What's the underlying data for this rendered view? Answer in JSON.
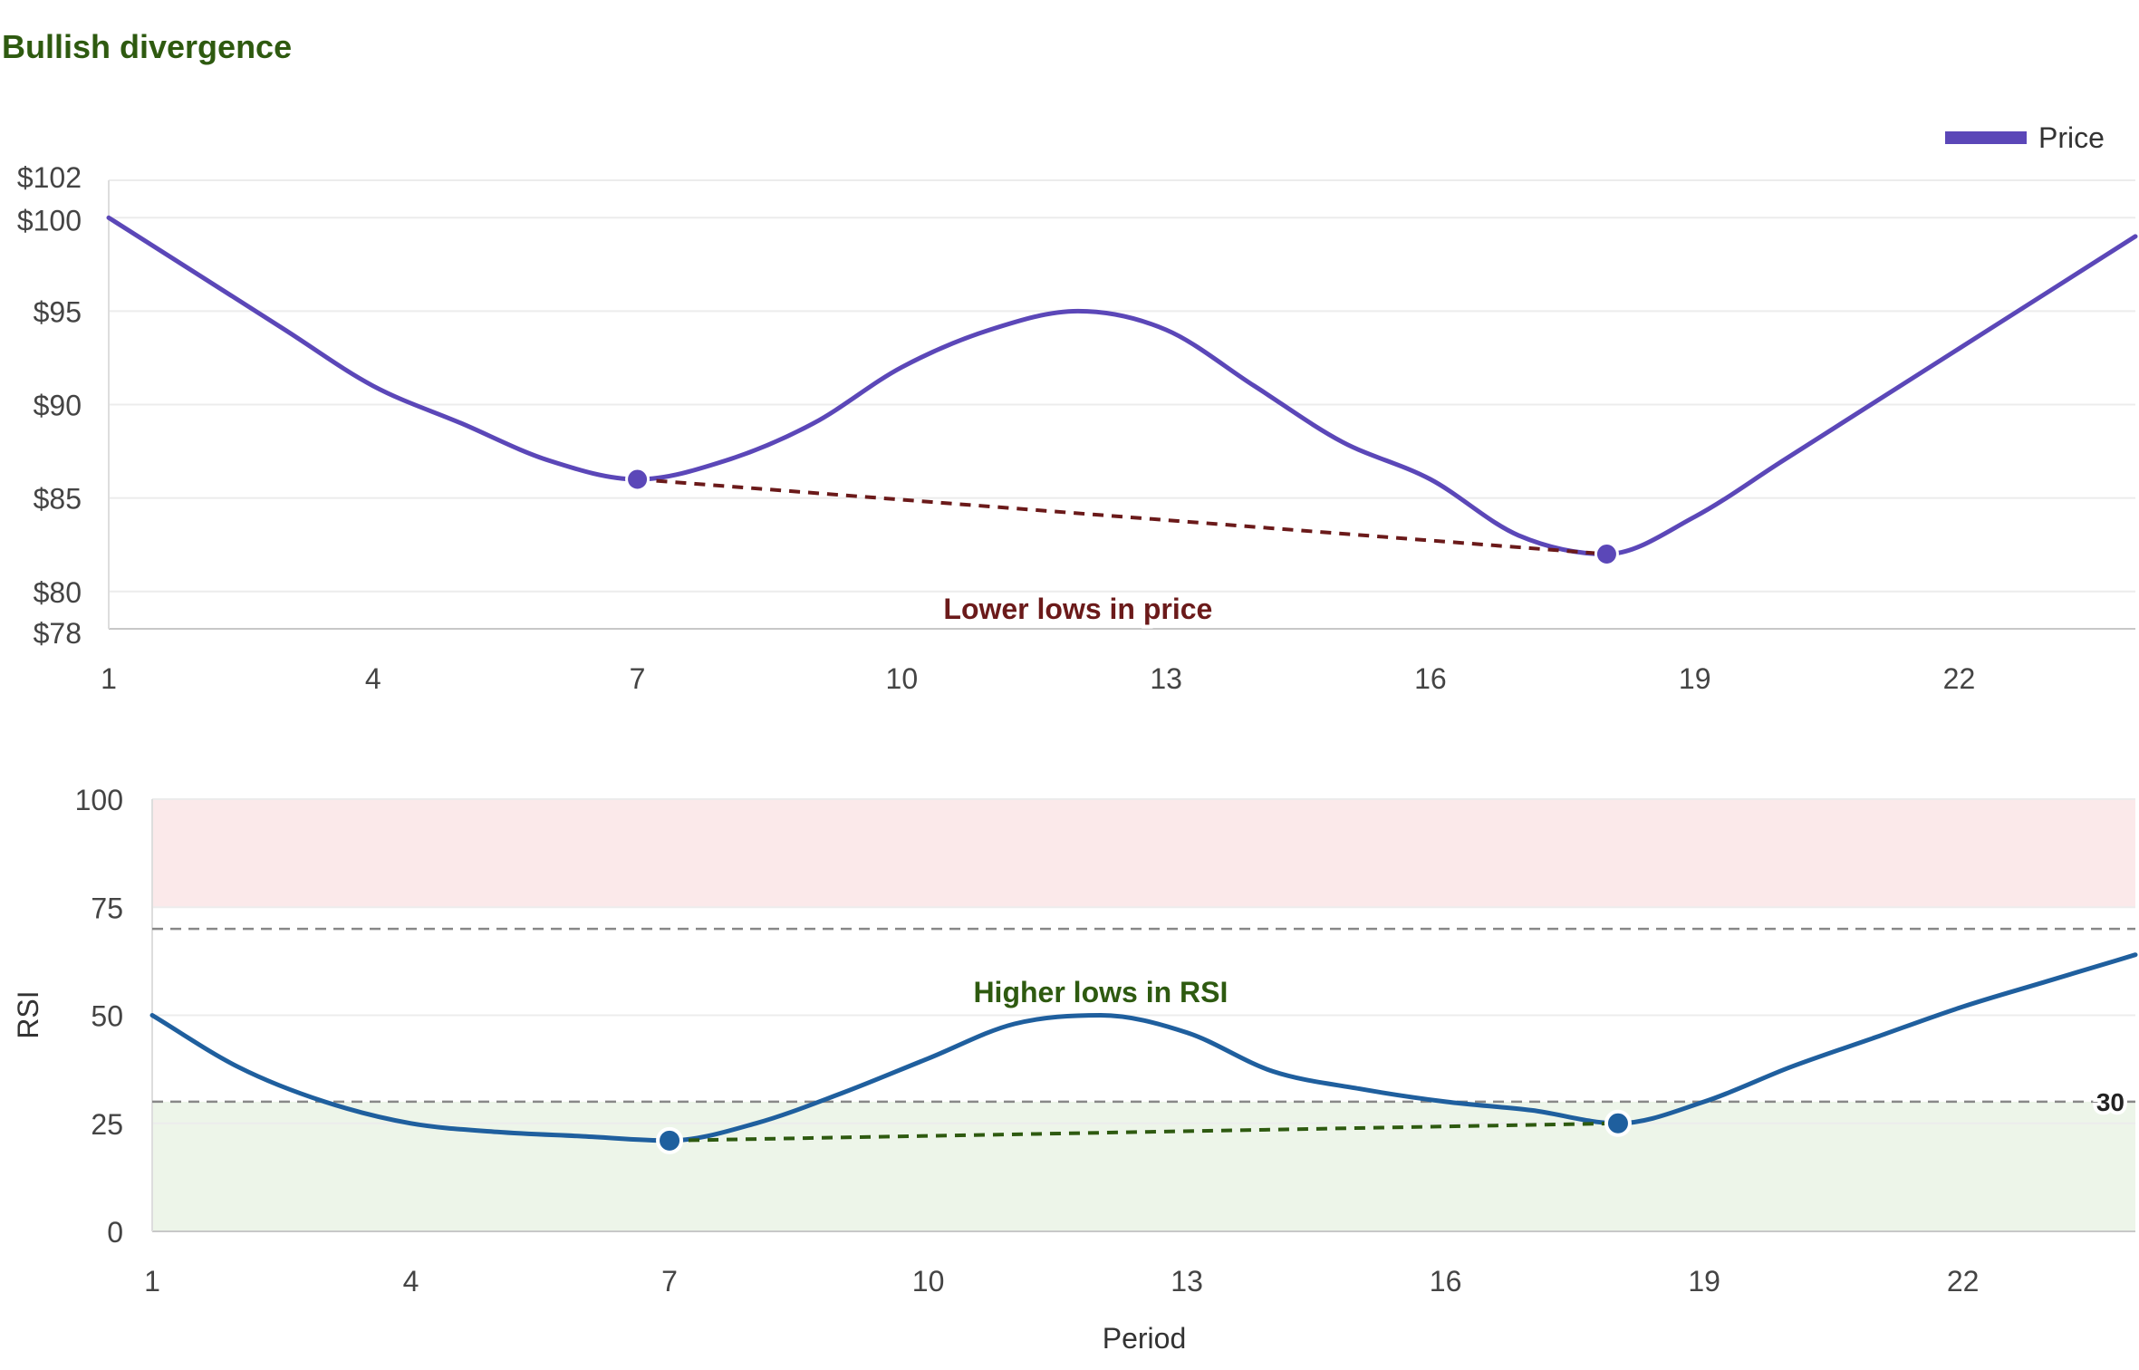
{
  "chart_data": [
    {
      "type": "line",
      "title": "Bullish divergence",
      "title_color": "#2e5a10",
      "x": [
        1,
        2,
        3,
        4,
        5,
        6,
        7,
        8,
        9,
        10,
        11,
        12,
        13,
        14,
        15,
        16,
        17,
        18,
        19,
        20,
        21,
        22,
        23,
        24
      ],
      "x_ticks": [
        1,
        4,
        7,
        10,
        13,
        16,
        19,
        22
      ],
      "series": [
        {
          "name": "Price",
          "color": "#5b47b8",
          "values": [
            100,
            97,
            94,
            91,
            89,
            87,
            86,
            87,
            89,
            92,
            94,
            95,
            94,
            91,
            88,
            86,
            83,
            82,
            84,
            87,
            90,
            93,
            96,
            99
          ]
        }
      ],
      "y_ticks": [
        78,
        80,
        85,
        90,
        95,
        100,
        102
      ],
      "y_tick_labels": [
        "$78",
        "$80",
        "$85",
        "$90",
        "$95",
        "$100",
        "$102"
      ],
      "ylim": [
        78,
        102
      ],
      "xlim": [
        1,
        24
      ],
      "grid": true,
      "legend": "top-right",
      "divergence": {
        "points": [
          {
            "x": 7,
            "y": 86
          },
          {
            "x": 18,
            "y": 82
          }
        ],
        "line_color": "#6b1a1a",
        "label": "Lower lows in price",
        "label_color": "#6b1a1a"
      }
    },
    {
      "type": "line",
      "x": [
        1,
        2,
        3,
        4,
        5,
        6,
        7,
        8,
        9,
        10,
        11,
        12,
        13,
        14,
        15,
        16,
        17,
        18,
        19,
        20,
        21,
        22,
        23,
        24
      ],
      "x_ticks": [
        1,
        4,
        7,
        10,
        13,
        16,
        19,
        22
      ],
      "series": [
        {
          "name": "RSI",
          "color": "#1f5f9e",
          "values": [
            50,
            38,
            30,
            25,
            23,
            22,
            21,
            25,
            32,
            40,
            48,
            50,
            46,
            37,
            33,
            30,
            28,
            25,
            30,
            38,
            45,
            52,
            58,
            64
          ]
        }
      ],
      "y_ticks": [
        0,
        25,
        50,
        75,
        100
      ],
      "y_tick_labels": [
        "0",
        "25",
        "50",
        "75",
        "100"
      ],
      "ylim": [
        0,
        100
      ],
      "xlim": [
        1,
        24
      ],
      "xlabel": "Period",
      "ylabel": "RSI",
      "grid": true,
      "overbought_zone": {
        "from": 75,
        "to": 100,
        "color": "#fbe9ea"
      },
      "oversold_zone": {
        "from": 0,
        "to": 30,
        "color": "#edf5e9"
      },
      "threshold_lines": [
        {
          "value": 70,
          "color": "#888888",
          "label": ""
        },
        {
          "value": 30,
          "color": "#888888",
          "label": "30"
        }
      ],
      "divergence": {
        "points": [
          {
            "x": 7,
            "y": 21
          },
          {
            "x": 18,
            "y": 25
          }
        ],
        "line_color": "#2e5a10",
        "label": "Higher lows in RSI",
        "label_color": "#2e5a10"
      }
    }
  ]
}
